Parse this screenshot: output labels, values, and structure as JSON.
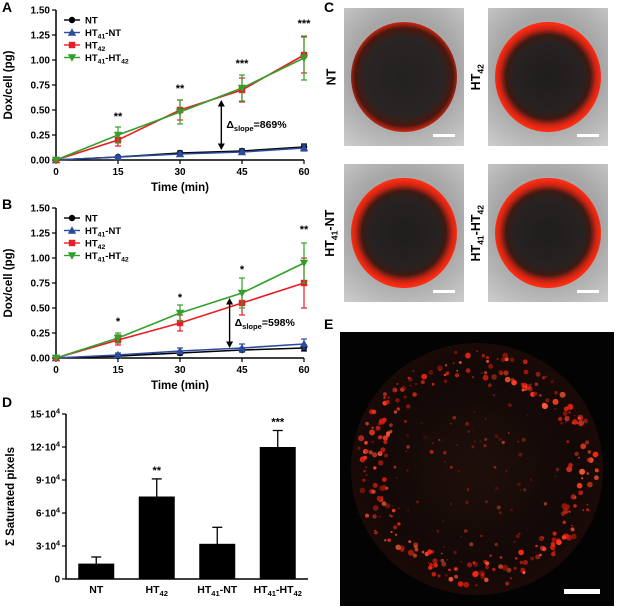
{
  "figure": {
    "panels": {
      "A": {
        "label": "A"
      },
      "B": {
        "label": "B"
      },
      "C": {
        "label": "C"
      },
      "D": {
        "label": "D"
      },
      "E": {
        "label": "E"
      }
    }
  },
  "chart_data": [
    {
      "id": "A",
      "type": "line",
      "xlabel": "Time (min)",
      "ylabel": "Dox/cell (pg)",
      "x": [
        0,
        15,
        30,
        45,
        60
      ],
      "xticks": [
        0,
        15,
        30,
        45,
        60
      ],
      "ylim": [
        0,
        1.5
      ],
      "yticks": [
        0,
        0.25,
        0.5,
        0.75,
        1.0,
        1.25,
        1.5
      ],
      "ytick_labels": [
        "0.00",
        "0.25",
        "0.50",
        "0.75",
        "1.00",
        "1.25",
        "1.50"
      ],
      "legend_position": "top-left",
      "series": [
        {
          "name": "NT",
          "marker": "circle",
          "color": "#000000",
          "values": [
            0,
            0.03,
            0.07,
            0.09,
            0.13
          ],
          "err": [
            0,
            0.01,
            0.02,
            0.02,
            0.03
          ]
        },
        {
          "name": "HT_{41}-NT",
          "marker": "triangle-up",
          "color": "#2b4b9b",
          "values": [
            0,
            0.03,
            0.06,
            0.08,
            0.12
          ],
          "err": [
            0,
            0.01,
            0.02,
            0.02,
            0.03
          ]
        },
        {
          "name": "HT_{42}",
          "marker": "square",
          "color": "#ec1c24",
          "values": [
            0,
            0.2,
            0.5,
            0.7,
            1.05
          ],
          "err": [
            0,
            0.06,
            0.1,
            0.12,
            0.18
          ]
        },
        {
          "name": "HT_{41}-HT_{42}",
          "marker": "triangle-down",
          "color": "#33a02c",
          "values": [
            0,
            0.25,
            0.48,
            0.72,
            1.02
          ],
          "err": [
            0,
            0.08,
            0.12,
            0.13,
            0.22
          ]
        }
      ],
      "significance": [
        {
          "x": 15,
          "y": 0.4,
          "label": "**"
        },
        {
          "x": 30,
          "y": 0.68,
          "label": "**"
        },
        {
          "x": 45,
          "y": 0.93,
          "label": "***"
        },
        {
          "x": 60,
          "y": 1.33,
          "label": "***"
        }
      ],
      "slope_annotation": {
        "x": 40,
        "y_bottom": 0.1,
        "y_top": 0.6,
        "label": "Δ_{slope}=869%"
      }
    },
    {
      "id": "B",
      "type": "line",
      "xlabel": "Time (min)",
      "ylabel": "Dox/cell (pg)",
      "x": [
        0,
        15,
        30,
        45,
        60
      ],
      "xticks": [
        0,
        15,
        30,
        45,
        60
      ],
      "ylim": [
        0,
        1.5
      ],
      "yticks": [
        0,
        0.25,
        0.5,
        0.75,
        1.0,
        1.25,
        1.5
      ],
      "ytick_labels": [
        "0.00",
        "0.25",
        "0.50",
        "0.75",
        "1.00",
        "1.25",
        "1.50"
      ],
      "legend_position": "top-left",
      "series": [
        {
          "name": "NT",
          "marker": "circle",
          "color": "#000000",
          "values": [
            0,
            0.02,
            0.05,
            0.08,
            0.1
          ],
          "err": [
            0,
            0.01,
            0.02,
            0.02,
            0.03
          ]
        },
        {
          "name": "HT_{41}-NT",
          "marker": "triangle-up",
          "color": "#2b4b9b",
          "values": [
            0,
            0.03,
            0.07,
            0.1,
            0.14
          ],
          "err": [
            0,
            0.02,
            0.03,
            0.04,
            0.05
          ]
        },
        {
          "name": "HT_{42}",
          "marker": "square",
          "color": "#ec1c24",
          "values": [
            0,
            0.18,
            0.35,
            0.55,
            0.75
          ],
          "err": [
            0,
            0.05,
            0.08,
            0.12,
            0.25
          ]
        },
        {
          "name": "HT_{41}-HT_{42}",
          "marker": "triangle-down",
          "color": "#33a02c",
          "values": [
            0,
            0.2,
            0.45,
            0.65,
            0.95
          ],
          "err": [
            0,
            0.05,
            0.08,
            0.15,
            0.2
          ]
        }
      ],
      "significance": [
        {
          "x": 15,
          "y": 0.33,
          "label": "*"
        },
        {
          "x": 30,
          "y": 0.57,
          "label": "*"
        },
        {
          "x": 45,
          "y": 0.85,
          "label": "*"
        },
        {
          "x": 60,
          "y": 1.25,
          "label": "**"
        }
      ],
      "slope_annotation": {
        "x": 42,
        "y_bottom": 0.1,
        "y_top": 0.6,
        "label": "Δ_{slope}=598%"
      }
    },
    {
      "id": "D",
      "type": "bar",
      "ylabel": "Σ Saturated pixels",
      "categories": [
        "NT",
        "HT_{42}",
        "HT_{41}-NT",
        "HT_{41}-HT_{42}"
      ],
      "values": [
        14000,
        75000,
        32000,
        120000
      ],
      "errors": [
        6000,
        16000,
        15000,
        15000
      ],
      "significance": [
        "",
        "**",
        "",
        "***"
      ],
      "ylim": [
        0,
        150000
      ],
      "yticks": [
        0,
        30000,
        60000,
        90000,
        120000,
        150000
      ],
      "ytick_labels": [
        "0",
        "3·10^{4}",
        "6·10^{4}",
        "9·10^{4}",
        "12·10^{4}",
        "15·10^{4}"
      ],
      "bar_color": "#000000"
    }
  ],
  "microscopy": {
    "c_images": [
      {
        "label": "NT"
      },
      {
        "label": "HT_{42}"
      },
      {
        "label": "HT_{41}-NT"
      },
      {
        "label": "HT_{41}-HT_{42}"
      }
    ]
  }
}
